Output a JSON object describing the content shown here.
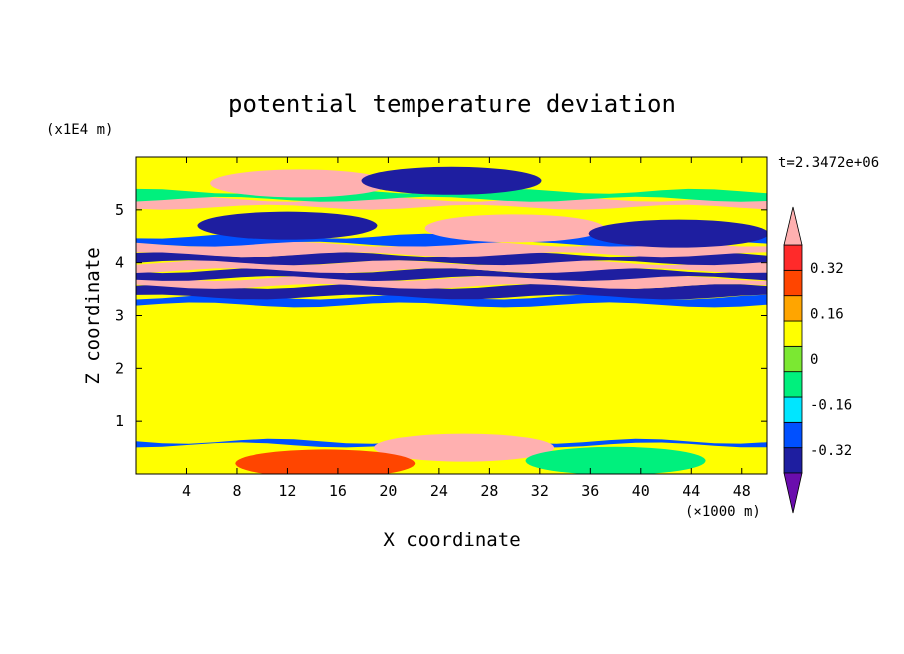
{
  "chart_data": {
    "type": "heatmap",
    "title": "potential temperature deviation",
    "xlabel": "X coordinate",
    "ylabel": "Z coordinate",
    "x_units": "(×1000 m)",
    "y_units": "(x1E4 m)",
    "time_label": "t=2.3472e+06",
    "xlim": [
      0,
      50
    ],
    "ylim": [
      0,
      6
    ],
    "x_ticks": [
      "4",
      "8",
      "12",
      "16",
      "20",
      "24",
      "28",
      "32",
      "36",
      "40",
      "44",
      "48"
    ],
    "y_ticks": [
      "1",
      "2",
      "3",
      "4",
      "5"
    ],
    "colorbar": {
      "ticks": [
        "0.32",
        "0.16",
        "0",
        "-0.16",
        "-0.32"
      ],
      "tick_values": [
        0.32,
        0.16,
        0,
        -0.16,
        -0.32
      ],
      "levels": [
        -0.4,
        -0.32,
        -0.24,
        -0.16,
        -0.08,
        0,
        0.08,
        0.16,
        0.24,
        0.32,
        0.4
      ],
      "colors": [
        "#6a0dad",
        "#1e1ea0",
        "#0050ff",
        "#00e6ff",
        "#00f07d",
        "#7be832",
        "#ffff00",
        "#ffa500",
        "#ff4500",
        "#ff2a2a",
        "#ffb0b0"
      ]
    },
    "bands": [
      {
        "z": [
          0.55,
          0.62
        ],
        "value": -0.32
      },
      {
        "z": [
          3.2,
          3.35
        ],
        "value": -0.32
      },
      {
        "z": [
          3.35,
          3.55
        ],
        "value": -0.4
      },
      {
        "z": [
          3.55,
          3.7
        ],
        "value": 0.4
      },
      {
        "z": [
          3.7,
          3.85
        ],
        "value": -0.4
      },
      {
        "z": [
          3.85,
          4.0
        ],
        "value": 0.4
      },
      {
        "z": [
          4.0,
          4.15
        ],
        "value": -0.4
      },
      {
        "z": [
          4.15,
          4.35
        ],
        "value": 0.4
      },
      {
        "z": [
          4.35,
          4.5
        ],
        "value": -0.32
      },
      {
        "z": [
          5.05,
          5.2
        ],
        "value": 0.4
      },
      {
        "z": [
          5.2,
          5.35
        ],
        "value": -0.16
      }
    ],
    "blobs": [
      {
        "x": 13,
        "z": 5.5,
        "value": 0.4
      },
      {
        "x": 25,
        "z": 5.55,
        "value": -0.4
      },
      {
        "x": 12,
        "z": 4.7,
        "value": -0.4
      },
      {
        "x": 30,
        "z": 4.65,
        "value": 0.4
      },
      {
        "x": 43,
        "z": 4.55,
        "value": -0.4
      },
      {
        "x": 26,
        "z": 0.5,
        "value": 0.4
      },
      {
        "x": 38,
        "z": 0.25,
        "value": -0.16
      },
      {
        "x": 15,
        "z": 0.2,
        "value": 0.16
      }
    ]
  }
}
